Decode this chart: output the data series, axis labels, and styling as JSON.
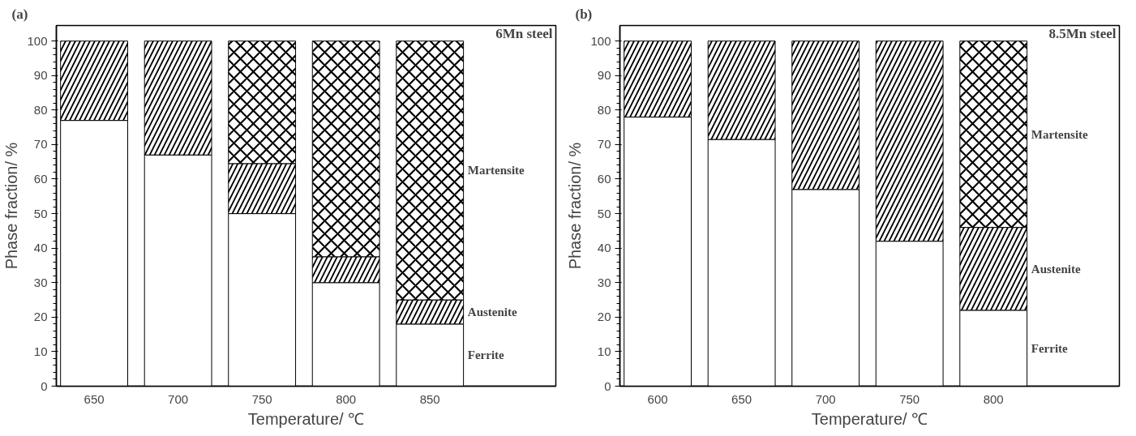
{
  "chart_data": [
    {
      "type": "bar",
      "title": "(a)",
      "xlabel": "Temperature/ ℃",
      "ylabel": "Phase fraction/ %",
      "categories": [
        "650",
        "700",
        "750",
        "800",
        "850"
      ],
      "stacked": true,
      "ylim": [
        0,
        104.5
      ],
      "yticks": [
        0,
        10,
        20,
        30,
        40,
        50,
        60,
        70,
        80,
        90,
        100
      ],
      "grid": false,
      "annotations": [
        "6Mn steel"
      ],
      "series": [
        {
          "name": "Ferrite",
          "color": "#ffffff",
          "values": [
            77,
            67,
            50,
            30,
            18
          ]
        },
        {
          "name": "Austenite",
          "color": "#ffffff",
          "values": [
            23,
            33,
            14.5,
            7.5,
            7
          ]
        },
        {
          "name": "Martensite",
          "color": "#ffffff",
          "values": [
            0,
            0,
            35.5,
            62.5,
            75
          ]
        }
      ]
    },
    {
      "type": "bar",
      "title": "(b)",
      "xlabel": "Temperature/ ℃",
      "ylabel": "Phase fraction/ %",
      "categories": [
        "600",
        "650",
        "700",
        "750",
        "800"
      ],
      "stacked": true,
      "ylim": [
        0,
        104.5
      ],
      "yticks": [
        0,
        10,
        20,
        30,
        40,
        50,
        60,
        70,
        80,
        90,
        100
      ],
      "grid": false,
      "annotations": [
        "8.5Mn steel"
      ],
      "series": [
        {
          "name": "Ferrite",
          "color": "#ffffff",
          "values": [
            78,
            71.5,
            57,
            42,
            22
          ]
        },
        {
          "name": "Austenite",
          "color": "#ffffff",
          "values": [
            22,
            28.5,
            43,
            58,
            24
          ]
        },
        {
          "name": "Martensite",
          "color": "#ffffff",
          "values": [
            0,
            0,
            0,
            0,
            54
          ]
        }
      ]
    }
  ]
}
